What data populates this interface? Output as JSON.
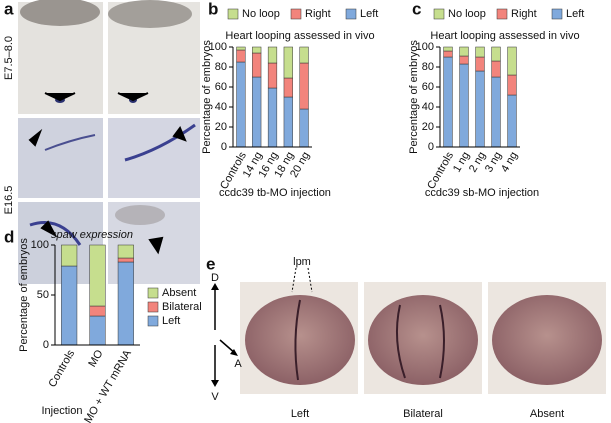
{
  "figure": {
    "panels": [
      "a",
      "b",
      "c",
      "d",
      "e"
    ],
    "stages": [
      "E7.5–8.0",
      "E16.5"
    ],
    "lpm": "lpm",
    "directions": {
      "dorsal": "D",
      "anterior": "A",
      "ventral": "V"
    },
    "e_labels": [
      "Left",
      "Bilateral",
      "Absent"
    ]
  },
  "chart_data": [
    {
      "type": "bar",
      "stacked": true,
      "title": "Heart looping assessed in vivo",
      "y_label": "Percentage of embryos",
      "x_label": "ccdc39 tb-MO injection",
      "categories": [
        "Controls",
        "14 ng",
        "16 ng",
        "18 ng",
        "20 ng"
      ],
      "series": [
        {
          "name": "Left",
          "color": "#80a9dc",
          "values": [
            85,
            70,
            59,
            50,
            38
          ]
        },
        {
          "name": "Right",
          "color": "#f2847c",
          "values": [
            12,
            24,
            25,
            19,
            46
          ]
        },
        {
          "name": "No loop",
          "color": "#c6de8e",
          "values": [
            3,
            6,
            16,
            31,
            16
          ]
        }
      ],
      "ylim": [
        0,
        100
      ],
      "yticks": [
        0,
        20,
        40,
        60,
        80,
        100
      ],
      "legend": "top"
    },
    {
      "type": "bar",
      "stacked": true,
      "title": "Heart looping assessed in vivo",
      "y_label": "Percentage of embryos",
      "x_label": "ccdc39 sb-MO injection",
      "categories": [
        "Controls",
        "1 ng",
        "2 ng",
        "3 ng",
        "4 ng"
      ],
      "series": [
        {
          "name": "Left",
          "color": "#80a9dc",
          "values": [
            90,
            83,
            76,
            70,
            52
          ]
        },
        {
          "name": "Right",
          "color": "#f2847c",
          "values": [
            6,
            8,
            14,
            16,
            20
          ]
        },
        {
          "name": "No loop",
          "color": "#c6de8e",
          "values": [
            4,
            9,
            10,
            14,
            28
          ]
        }
      ],
      "ylim": [
        0,
        100
      ],
      "yticks": [
        0,
        20,
        40,
        60,
        80,
        100
      ],
      "legend": "top"
    },
    {
      "type": "bar",
      "stacked": true,
      "title": "spaw expression",
      "y_label": "Percentage of embryos",
      "x_label": "Injection",
      "categories": [
        "Controls",
        "MO",
        "MO + WT mRNA"
      ],
      "series": [
        {
          "name": "Left",
          "color": "#80a9dc",
          "values": [
            79,
            29,
            83
          ]
        },
        {
          "name": "Bilateral",
          "color": "#f2847c",
          "values": [
            0,
            10,
            4
          ]
        },
        {
          "name": "Absent",
          "color": "#c6de8e",
          "values": [
            21,
            61,
            13
          ]
        }
      ],
      "ylim": [
        0,
        100
      ],
      "yticks": [
        0,
        50,
        100
      ],
      "legend": "right"
    }
  ]
}
